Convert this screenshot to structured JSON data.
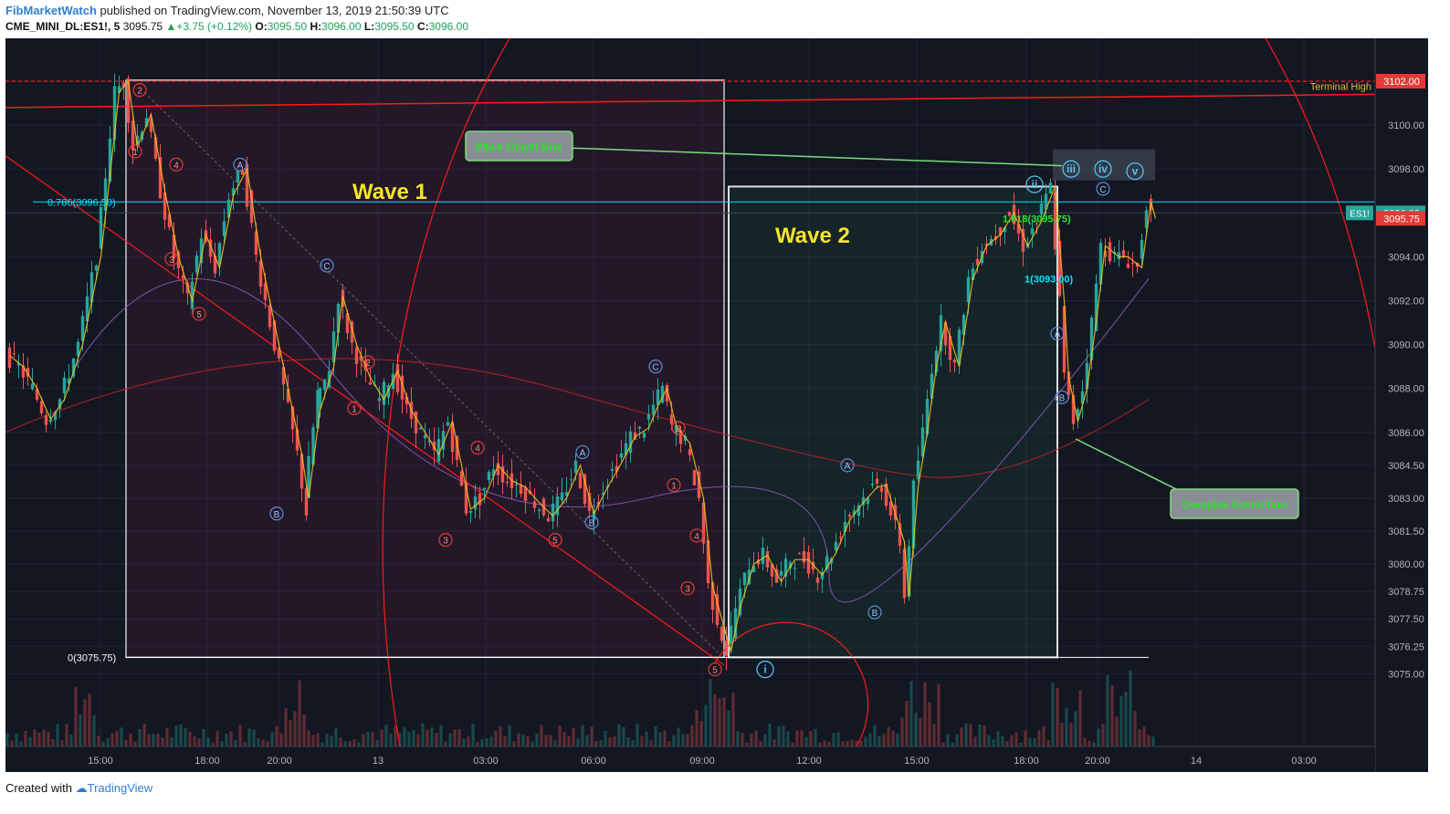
{
  "header": {
    "author": "FibMarketWatch",
    "published_text": "published on TradingView.com, November 13, 2019 21:50:39 UTC",
    "symbol": "CME_MINI_DL:ES1!, 5",
    "last": "3095.75",
    "change": "+3.75 (+0.12%)",
    "open_label": "O:",
    "open": "3095.50",
    "high_label": "H:",
    "high": "3096.00",
    "low_label": "L:",
    "low": "3095.50",
    "close_label": "C:",
    "close": "3096.00"
  },
  "footer": {
    "created_with": "Created with",
    "brand": "TradingView"
  },
  "chart_data": {
    "type": "candlestick",
    "symbol": "ES1!",
    "interval": "5",
    "ylim": [
      3074.25,
      3104.0
    ],
    "y_ticks": [
      "3102.00",
      "3100.00",
      "3098.00",
      "3096.00",
      "3094.00",
      "3092.00",
      "3090.00",
      "3088.00",
      "3086.00",
      "3084.50",
      "3083.00",
      "3081.50",
      "3080.00",
      "3078.75",
      "3077.50",
      "3076.25",
      "3075.00"
    ],
    "x_ticks": [
      "15:00",
      "18:00",
      "20:00",
      "13",
      "03:00",
      "06:00",
      "09:00",
      "12:00",
      "15:00",
      "18:00",
      "20:00",
      "14",
      "03:00"
    ],
    "price_path": [
      [
        0,
        3089.5
      ],
      [
        3,
        3089
      ],
      [
        6,
        3088
      ],
      [
        9,
        3086.6
      ],
      [
        12,
        3087.5
      ],
      [
        16,
        3090
      ],
      [
        20,
        3094
      ],
      [
        24,
        3101.5
      ],
      [
        26,
        3102
      ],
      [
        28,
        3099
      ],
      [
        31,
        3100.5
      ],
      [
        34,
        3097
      ],
      [
        37,
        3094
      ],
      [
        40,
        3092
      ],
      [
        43,
        3095
      ],
      [
        46,
        3093.5
      ],
      [
        49,
        3096.8
      ],
      [
        52,
        3098
      ],
      [
        55,
        3094
      ],
      [
        58,
        3091
      ],
      [
        61,
        3088
      ],
      [
        64,
        3085
      ],
      [
        65.5,
        3083
      ],
      [
        68,
        3087
      ],
      [
        71,
        3089
      ],
      [
        73,
        3092.2
      ],
      [
        76,
        3090
      ],
      [
        79,
        3088.5
      ],
      [
        82,
        3087.5
      ],
      [
        85,
        3088.8
      ],
      [
        88,
        3087
      ],
      [
        91,
        3086
      ],
      [
        94,
        3085
      ],
      [
        97,
        3086.5
      ],
      [
        99,
        3084.5
      ],
      [
        101,
        3082.5
      ],
      [
        104,
        3083
      ],
      [
        107,
        3084.5
      ],
      [
        110,
        3083.8
      ],
      [
        113,
        3083.5
      ],
      [
        116,
        3082.8
      ],
      [
        119,
        3082.2
      ],
      [
        122,
        3083
      ],
      [
        125,
        3084.5
      ],
      [
        128,
        3082.3
      ],
      [
        131,
        3083.5
      ],
      [
        134,
        3084.6
      ],
      [
        137,
        3085.8
      ],
      [
        140,
        3086.2
      ],
      [
        142,
        3087.2
      ],
      [
        144,
        3088
      ],
      [
        146,
        3086.3
      ],
      [
        149,
        3085.5
      ],
      [
        152,
        3083
      ],
      [
        154,
        3079
      ],
      [
        156,
        3077.5
      ],
      [
        158,
        3076
      ],
      [
        160,
        3078
      ],
      [
        163,
        3080
      ],
      [
        166,
        3080.4
      ],
      [
        169,
        3079.2
      ],
      [
        172,
        3080.2
      ],
      [
        175,
        3080.2
      ],
      [
        178,
        3079.5
      ],
      [
        181,
        3080.5
      ],
      [
        184,
        3082
      ],
      [
        187,
        3082.8
      ],
      [
        190,
        3083.5
      ],
      [
        192,
        3083.6
      ],
      [
        194,
        3082.3
      ],
      [
        196,
        3081
      ],
      [
        197,
        3078.5
      ],
      [
        199,
        3083.5
      ],
      [
        201,
        3086
      ],
      [
        203,
        3089
      ],
      [
        205,
        3091
      ],
      [
        208,
        3089
      ],
      [
        211,
        3093
      ],
      [
        214,
        3094.5
      ],
      [
        217,
        3095
      ],
      [
        220,
        3096
      ],
      [
        223,
        3094.5
      ],
      [
        226,
        3095.6
      ],
      [
        229,
        3097.2
      ],
      [
        231,
        3092
      ],
      [
        232,
        3088.5
      ],
      [
        234,
        3086.5
      ],
      [
        236,
        3088
      ],
      [
        238,
        3091
      ],
      [
        240,
        3094.5
      ],
      [
        243,
        3094
      ],
      [
        245,
        3094
      ],
      [
        248,
        3093.5
      ],
      [
        250,
        3096.5
      ],
      [
        251,
        3095.75
      ]
    ],
    "fib_levels": [
      {
        "label": "0.786(3096.50)",
        "value": 3096.5
      },
      {
        "label": "0(3075.75)",
        "value": 3075.75
      },
      {
        "label": "1.618(3095.75)",
        "value": 3095.75
      },
      {
        "label": "1(3093.00)",
        "value": 3093.0
      }
    ],
    "terminal_high": {
      "label": "Terminal High",
      "value": 3102.0
    },
    "price_badges": [
      {
        "label": "3102.00",
        "value": 3102.0,
        "color": "#e53935"
      },
      {
        "label": "3096.00",
        "value": 3096.0,
        "color": "#26a69a",
        "tag": "ES1!"
      },
      {
        "label": "3095.75",
        "value": 3095.75,
        "color": "#e53935"
      }
    ],
    "wave_labels": [
      "Wave 1",
      "Wave 2"
    ],
    "callouts": [
      "Wave Count Box",
      "Complex Correction"
    ],
    "wave_markers": [
      {
        "text": "1",
        "color": "red",
        "t": 28,
        "v": 3098.8
      },
      {
        "text": "2",
        "color": "red",
        "t": 29,
        "v": 3101.6
      },
      {
        "text": "3",
        "color": "red",
        "t": 36,
        "v": 3093.9
      },
      {
        "text": "4",
        "color": "red",
        "t": 37,
        "v": 3098.2
      },
      {
        "text": "5",
        "color": "red",
        "t": 42,
        "v": 3091.4
      },
      {
        "text": "A",
        "color": "blue",
        "t": 51,
        "v": 3098.2
      },
      {
        "text": "B",
        "color": "blue",
        "t": 59,
        "v": 3082.3
      },
      {
        "text": "C",
        "color": "blue",
        "t": 70,
        "v": 3093.6
      },
      {
        "text": "1",
        "color": "red",
        "t": 76,
        "v": 3087.1
      },
      {
        "text": "2",
        "color": "red",
        "t": 79,
        "v": 3089.2
      },
      {
        "text": "3",
        "color": "red",
        "t": 96,
        "v": 3081.1
      },
      {
        "text": "4",
        "color": "red",
        "t": 103,
        "v": 3085.3
      },
      {
        "text": "5",
        "color": "red",
        "t": 120,
        "v": 3081.1
      },
      {
        "text": "A",
        "color": "blue",
        "t": 126,
        "v": 3085.1
      },
      {
        "text": "B",
        "color": "blue",
        "t": 128,
        "v": 3081.9
      },
      {
        "text": "C",
        "color": "blue",
        "t": 142,
        "v": 3089.0
      },
      {
        "text": "2",
        "color": "red",
        "t": 147,
        "v": 3086.2
      },
      {
        "text": "1",
        "color": "red",
        "t": 146,
        "v": 3083.6
      },
      {
        "text": "4",
        "color": "red",
        "t": 151,
        "v": 3081.3
      },
      {
        "text": "3",
        "color": "red",
        "t": 149,
        "v": 3078.9
      },
      {
        "text": "5",
        "color": "red",
        "t": 155,
        "v": 3075.2
      },
      {
        "text": "A",
        "color": "blue",
        "t": 184,
        "v": 3084.5
      },
      {
        "text": "B",
        "color": "blue",
        "t": 190,
        "v": 3077.8
      },
      {
        "text": "C",
        "color": "blue",
        "t": 240,
        "v": 3097.1
      },
      {
        "text": "A",
        "color": "blue",
        "t": 230,
        "v": 3090.5
      },
      {
        "text": "B",
        "color": "blue",
        "t": 231,
        "v": 3087.6
      }
    ],
    "degree_markers": [
      {
        "text": "i",
        "t": 166,
        "v": 3075.2
      },
      {
        "text": "ii",
        "t": 225,
        "v": 3097.3
      },
      {
        "text": "iii",
        "t": 233,
        "v": 3098.0
      },
      {
        "text": "iv",
        "t": 240,
        "v": 3098.0
      },
      {
        "text": "v",
        "t": 247,
        "v": 3097.9
      }
    ],
    "colors": {
      "background": "#131722",
      "up": "#26a69a",
      "down": "#ef5350",
      "wave_text": "#f5e52a",
      "fib": "#00e5ff",
      "trend": "#ff1a1a"
    }
  }
}
